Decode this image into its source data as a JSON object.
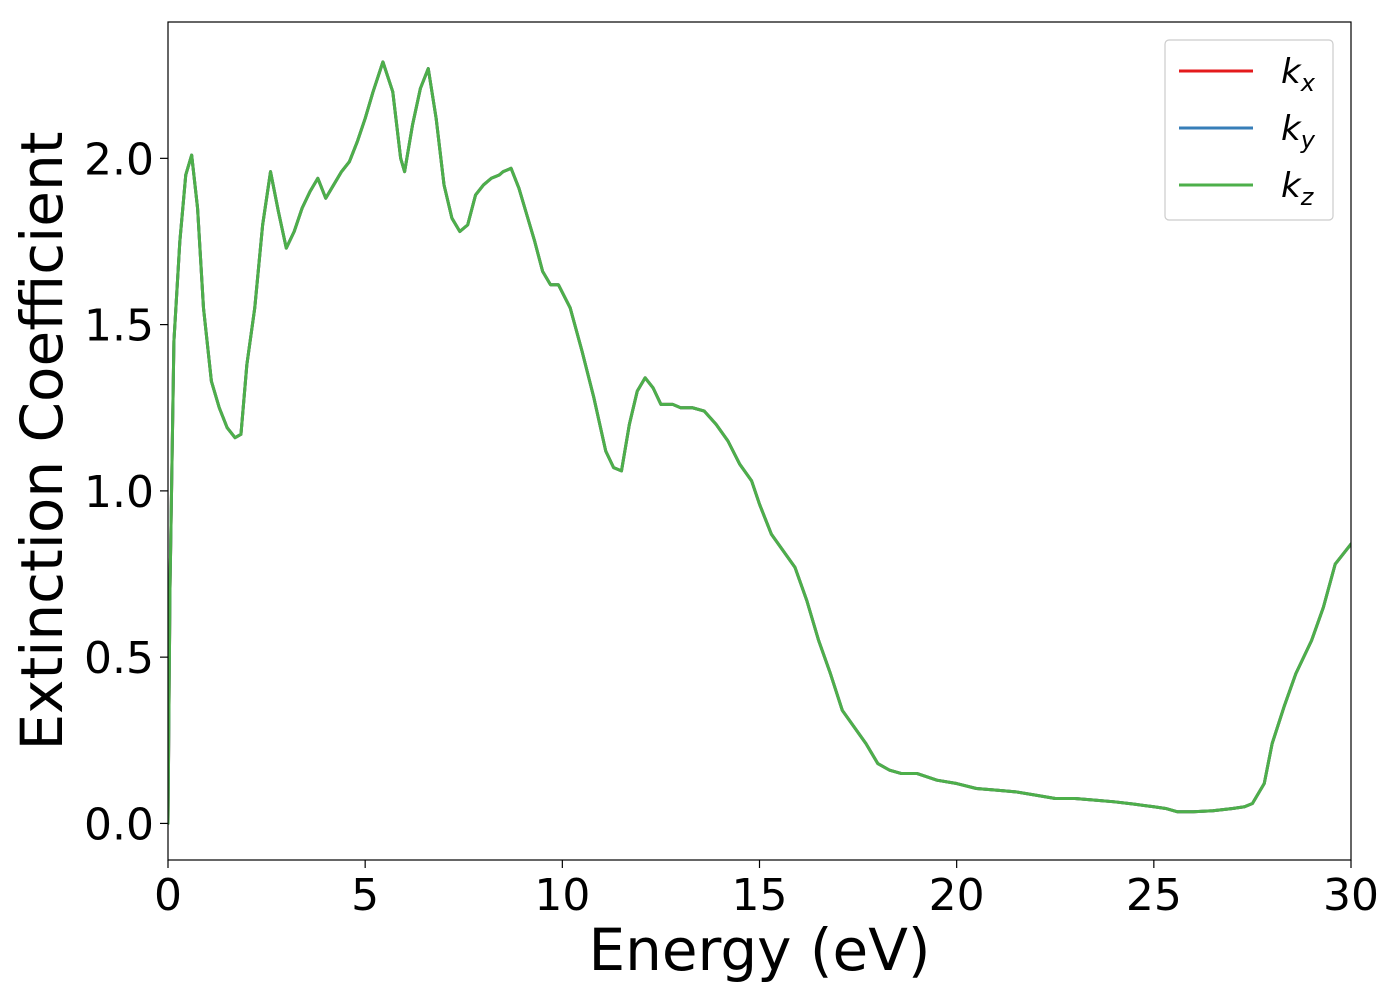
{
  "chart_data": {
    "type": "line",
    "xlabel": "Energy (eV)",
    "ylabel": "Extinction Coefficient",
    "xlim": [
      0,
      30
    ],
    "ylim": [
      -0.11,
      2.41
    ],
    "xticks": [
      0,
      5,
      10,
      15,
      20,
      25,
      30
    ],
    "xtick_labels": [
      "0",
      "5",
      "10",
      "15",
      "20",
      "25",
      "30"
    ],
    "yticks": [
      0.0,
      0.5,
      1.0,
      1.5,
      2.0
    ],
    "ytick_labels": [
      "0.0",
      "0.5",
      "1.0",
      "1.5",
      "2.0"
    ],
    "grid": false,
    "legend_position": "upper-right",
    "series": [
      {
        "name": "k",
        "subscript": "x",
        "color": "#e41a1c"
      },
      {
        "name": "k",
        "subscript": "y",
        "color": "#377eb8"
      },
      {
        "name": "k",
        "subscript": "z",
        "color": "#4daf4a"
      }
    ],
    "x": [
      0,
      0.05,
      0.15,
      0.3,
      0.45,
      0.6,
      0.75,
      0.9,
      1.1,
      1.3,
      1.5,
      1.7,
      1.85,
      2.0,
      2.2,
      2.4,
      2.6,
      2.8,
      3.0,
      3.2,
      3.4,
      3.6,
      3.8,
      4.0,
      4.2,
      4.4,
      4.6,
      4.8,
      5.0,
      5.2,
      5.45,
      5.7,
      5.9,
      6.0,
      6.2,
      6.4,
      6.6,
      6.8,
      7.0,
      7.2,
      7.4,
      7.6,
      7.8,
      8.0,
      8.2,
      8.4,
      8.5,
      8.7,
      8.9,
      9.1,
      9.3,
      9.5,
      9.7,
      9.9,
      10.2,
      10.5,
      10.8,
      11.1,
      11.3,
      11.5,
      11.7,
      11.9,
      12.1,
      12.3,
      12.5,
      12.8,
      13.0,
      13.3,
      13.6,
      13.9,
      14.2,
      14.5,
      14.8,
      15.0,
      15.3,
      15.6,
      15.9,
      16.2,
      16.5,
      16.8,
      17.1,
      17.4,
      17.7,
      18.0,
      18.3,
      18.6,
      19.0,
      19.5,
      20.0,
      20.5,
      21.0,
      21.5,
      22.0,
      22.5,
      23.0,
      23.5,
      24.0,
      24.5,
      25.0,
      25.3,
      25.6,
      26.0,
      26.5,
      27.0,
      27.3,
      27.5,
      27.8,
      28.0,
      28.3,
      28.6,
      29.0,
      29.3,
      29.6,
      29.8,
      30.0
    ],
    "values": [
      0.0,
      0.7,
      1.45,
      1.75,
      1.95,
      2.01,
      1.85,
      1.55,
      1.33,
      1.25,
      1.19,
      1.16,
      1.17,
      1.38,
      1.55,
      1.8,
      1.96,
      1.84,
      1.73,
      1.78,
      1.85,
      1.9,
      1.94,
      1.88,
      1.92,
      1.96,
      1.99,
      2.05,
      2.12,
      2.2,
      2.29,
      2.2,
      2.0,
      1.96,
      2.1,
      2.21,
      2.27,
      2.12,
      1.92,
      1.82,
      1.78,
      1.8,
      1.89,
      1.92,
      1.94,
      1.95,
      1.96,
      1.97,
      1.91,
      1.83,
      1.75,
      1.66,
      1.62,
      1.62,
      1.55,
      1.42,
      1.28,
      1.12,
      1.07,
      1.06,
      1.2,
      1.3,
      1.34,
      1.31,
      1.26,
      1.26,
      1.25,
      1.25,
      1.24,
      1.2,
      1.15,
      1.08,
      1.03,
      0.96,
      0.87,
      0.82,
      0.77,
      0.67,
      0.55,
      0.45,
      0.34,
      0.29,
      0.24,
      0.18,
      0.16,
      0.15,
      0.15,
      0.13,
      0.12,
      0.105,
      0.1,
      0.095,
      0.085,
      0.075,
      0.075,
      0.07,
      0.065,
      0.058,
      0.05,
      0.045,
      0.035,
      0.035,
      0.038,
      0.045,
      0.05,
      0.06,
      0.12,
      0.24,
      0.35,
      0.45,
      0.55,
      0.65,
      0.78,
      0.81,
      0.84
    ]
  }
}
